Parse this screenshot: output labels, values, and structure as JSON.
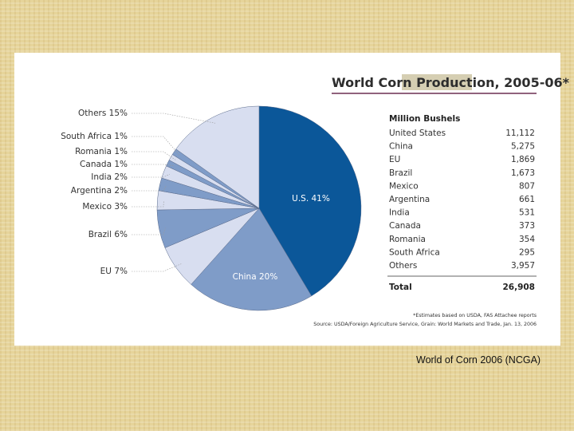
{
  "chart_data": {
    "type": "pie",
    "title_part1": "World Corn ",
    "title_highlight": "Production,",
    "title_part2": " 2005-06*",
    "slices": [
      {
        "name": "U.S.",
        "value": 41,
        "label": "U.S. 41%",
        "color": "#0b5799"
      },
      {
        "name": "China",
        "value": 20,
        "label": "China 20%",
        "color": "#7f9cc8"
      },
      {
        "name": "EU",
        "value": 7,
        "label": "EU 7%",
        "color": "#d8def0"
      },
      {
        "name": "Brazil",
        "value": 6,
        "label": "Brazil 6%",
        "color": "#7f9cc8"
      },
      {
        "name": "Mexico",
        "value": 3,
        "label": "Mexico 3%",
        "color": "#d8def0"
      },
      {
        "name": "Argentina",
        "value": 2,
        "label": "Argentina 2%",
        "color": "#7f9cc8"
      },
      {
        "name": "India",
        "value": 2,
        "label": "India 2%",
        "color": "#d8def0"
      },
      {
        "name": "Canada",
        "value": 1,
        "label": "Canada 1%",
        "color": "#7f9cc8"
      },
      {
        "name": "Romania",
        "value": 1,
        "label": "Romania 1%",
        "color": "#d8def0"
      },
      {
        "name": "South Africa",
        "value": 1,
        "label": "South Africa 1%",
        "color": "#7f9cc8"
      },
      {
        "name": "Others",
        "value": 15,
        "label": "Others 15%",
        "color": "#d8def0"
      }
    ],
    "table": {
      "header": "Million Bushels",
      "rows": [
        {
          "name": "United States",
          "value": "11,112"
        },
        {
          "name": "China",
          "value": "5,275"
        },
        {
          "name": "EU",
          "value": "1,869"
        },
        {
          "name": "Brazil",
          "value": "1,673"
        },
        {
          "name": "Mexico",
          "value": "807"
        },
        {
          "name": "Argentina",
          "value": "661"
        },
        {
          "name": "India",
          "value": "531"
        },
        {
          "name": "Canada",
          "value": "373"
        },
        {
          "name": "Romania",
          "value": "354"
        },
        {
          "name": "South Africa",
          "value": "295"
        },
        {
          "name": "Others",
          "value": "3,957"
        }
      ],
      "total_label": "Total",
      "total_value": "26,908"
    },
    "footnote": "*Estimates based on USDA, FAS Attachee reports",
    "source": "Source: USDA/Foreign Agriculture Service, Grain: World Markets and Trade, Jan. 13, 2006"
  },
  "caption": "World of Corn 2006 (NCGA)",
  "colors": {
    "background": "#e6d49a",
    "title_rule": "#6b2f52",
    "title_highlight": "#d5ceb2"
  }
}
